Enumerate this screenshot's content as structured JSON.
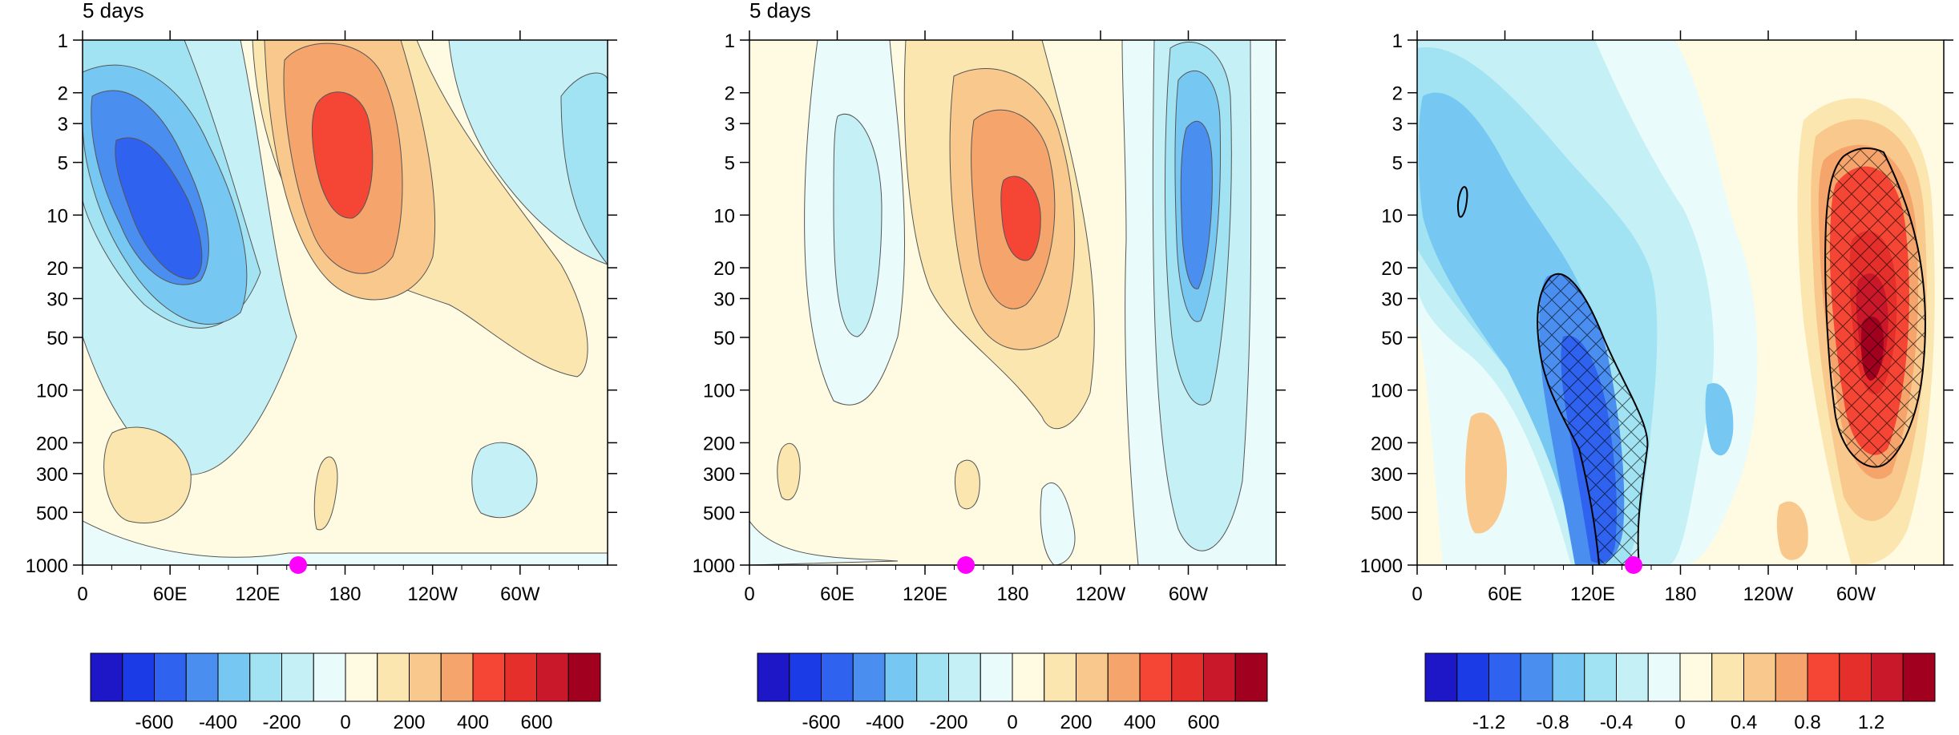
{
  "figure": {
    "panels": [
      {
        "title": "5 days"
      },
      {
        "title": "5 days"
      },
      {
        "title": ""
      }
    ]
  },
  "colorbar": {
    "colors": [
      "#1e17c8",
      "#1b3be6",
      "#2f62ee",
      "#4a8ef0",
      "#76c8f2",
      "#a2e3f3",
      "#c5f1f6",
      "#e9fbfb",
      "#fefbe2",
      "#fbe6b0",
      "#f8c88c",
      "#f5a46c",
      "#f54535",
      "#e42f2b",
      "#c9182a",
      "#a2001f"
    ],
    "ticks_panel1": [
      "-600",
      "-400",
      "-200",
      "0",
      "200",
      "400",
      "600"
    ],
    "ticks_panel2": [
      "-600",
      "-400",
      "-200",
      "0",
      "200",
      "400",
      "600"
    ],
    "ticks_panel3": [
      "-1.2",
      "-0.8",
      "-0.4",
      "0",
      "0.4",
      "0.8",
      "1.2"
    ]
  },
  "chart_data": [
    {
      "type": "heatmap",
      "title": "5 days",
      "x_tick_labels": [
        "0",
        "60E",
        "120E",
        "180",
        "120W",
        "60W"
      ],
      "x_ticks_deg": [
        0,
        60,
        120,
        180,
        240,
        300
      ],
      "y_tick_labels": [
        "1",
        "2",
        "3",
        "5",
        "10",
        "20",
        "30",
        "50",
        "100",
        "200",
        "300",
        "500",
        "1000"
      ],
      "y_ticks_hPa": [
        1,
        2,
        3,
        5,
        10,
        20,
        30,
        50,
        100,
        200,
        300,
        500,
        1000
      ],
      "y_scale": "log (reversed, pressure)",
      "xlim": [
        0,
        360
      ],
      "ylim": [
        1000,
        1
      ],
      "levels": [
        -700,
        -600,
        -500,
        -400,
        -300,
        -200,
        -100,
        0,
        100,
        200,
        300,
        400,
        500,
        600,
        700
      ],
      "features": [
        {
          "kind": "minimum",
          "lon": 45,
          "p_hPa": 8,
          "value": -550
        },
        {
          "kind": "maximum",
          "lon": 178,
          "p_hPa": 5,
          "value": 550
        },
        {
          "kind": "weak minimum",
          "lon": 292,
          "p_hPa": 300,
          "value": -150
        },
        {
          "kind": "weak maximum",
          "lon": 28,
          "p_hPa": 250,
          "value": 150
        }
      ],
      "marker": {
        "lon": 147,
        "p_hPa": 1000,
        "color": "#ff00ff"
      }
    },
    {
      "type": "heatmap",
      "title": "5 days",
      "x_tick_labels": [
        "0",
        "60E",
        "120E",
        "180",
        "120W",
        "60W"
      ],
      "y_tick_labels": [
        "1",
        "2",
        "3",
        "5",
        "10",
        "20",
        "30",
        "50",
        "100",
        "200",
        "300",
        "500",
        "1000"
      ],
      "y_scale": "log (reversed, pressure)",
      "xlim": [
        0,
        360
      ],
      "ylim": [
        1000,
        1
      ],
      "levels": [
        -700,
        -600,
        -500,
        -400,
        -300,
        -200,
        -100,
        0,
        100,
        200,
        300,
        400,
        500,
        600,
        700
      ],
      "features": [
        {
          "kind": "weak minimum",
          "lon": 80,
          "p_hPa": 15,
          "value": -180
        },
        {
          "kind": "maximum",
          "lon": 190,
          "p_hPa": 12,
          "value": 550
        },
        {
          "kind": "minimum",
          "lon": 300,
          "p_hPa": 12,
          "value": -550
        }
      ],
      "marker": {
        "lon": 147,
        "p_hPa": 1000,
        "color": "#ff00ff"
      }
    },
    {
      "type": "heatmap",
      "x_tick_labels": [
        "0",
        "60E",
        "120E",
        "180",
        "120W",
        "60W"
      ],
      "y_tick_labels": [
        "1",
        "2",
        "3",
        "5",
        "10",
        "20",
        "30",
        "50",
        "100",
        "200",
        "300",
        "500",
        "1000"
      ],
      "y_scale": "log (reversed, pressure)",
      "xlim": [
        0,
        360
      ],
      "ylim": [
        1000,
        1
      ],
      "levels": [
        -1.4,
        -1.2,
        -1.0,
        -0.8,
        -0.6,
        -0.4,
        -0.2,
        0,
        0.2,
        0.4,
        0.6,
        0.8,
        1.0,
        1.2,
        1.4
      ],
      "features": [
        {
          "kind": "minimum (hatched significant)",
          "lon": 130,
          "p_hPa": 300,
          "value": -1.0
        },
        {
          "kind": "maximum (hatched significant)",
          "lon": 300,
          "p_hPa": 60,
          "value": 1.3
        },
        {
          "kind": "weak minimum",
          "lon": 30,
          "p_hPa": 5,
          "value": -0.5
        }
      ],
      "marker": {
        "lon": 147,
        "p_hPa": 1000,
        "color": "#ff00ff"
      }
    }
  ]
}
